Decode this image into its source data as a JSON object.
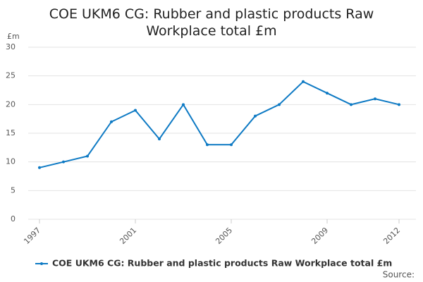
{
  "chart_data": {
    "type": "line",
    "title": "COE UKM6 CG: Rubber and plastic products Raw Workplace total £m",
    "y_unit": "£m",
    "source": "Source:",
    "x": [
      1997,
      1998,
      1999,
      2000,
      2001,
      2002,
      2003,
      2004,
      2005,
      2006,
      2007,
      2008,
      2009,
      2010,
      2011,
      2012
    ],
    "series": [
      {
        "name": "COE UKM6 CG: Rubber and plastic products Raw Workplace total £m",
        "color": "#0e7ac4",
        "values": [
          9,
          10,
          11,
          17,
          19,
          14,
          20,
          13,
          13,
          18,
          20,
          24,
          22,
          20,
          21,
          20
        ]
      }
    ],
    "xlim": [
      1997,
      2012
    ],
    "xticks": [
      1997,
      2001,
      2005,
      2009,
      2012
    ],
    "ylim": [
      0,
      30
    ],
    "yticks": [
      0,
      5,
      10,
      15,
      20,
      25,
      30
    ],
    "grid": true
  }
}
